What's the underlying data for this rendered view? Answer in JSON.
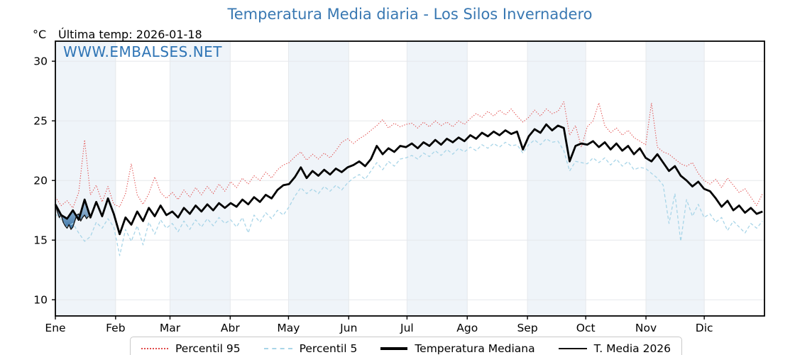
{
  "header": {
    "title": "Temperatura Media diaria - Los Silos Invernadero",
    "unit": "°C",
    "last_temp_annotation": "Última temp: 2026-01-18",
    "watermark": "WWW.EMBALSES.NET"
  },
  "colors": {
    "title_blue": "#3978b2",
    "watermark_blue": "#2e74b5",
    "percentil95_red": "#e14b4b",
    "percentil5_blue": "#a8d5e8",
    "median_black": "#000000",
    "t2026_black": "#111111",
    "month_band": "#eff4f9",
    "gridline": "#e5e8ec",
    "fill_top": "#9fbad4",
    "fill_bottom": "#2e6da4"
  },
  "chart_data": {
    "type": "line",
    "title": "Temperatura Media diaria - Los Silos Invernadero",
    "xlabel": "",
    "ylabel": "°C",
    "ylim": [
      8.6,
      31.7
    ],
    "y_ticks": [
      10,
      15,
      20,
      25,
      30
    ],
    "x_tick_labels": [
      "Ene",
      "Feb",
      "Mar",
      "Abr",
      "May",
      "Jun",
      "Jul",
      "Ago",
      "Sep",
      "Oct",
      "Nov",
      "Dic"
    ],
    "month_boundaries_days": [
      0,
      31,
      59,
      90,
      120,
      151,
      181,
      212,
      243,
      273,
      304,
      334,
      365
    ],
    "shaded_months": "alternating starting with Ene",
    "grid": true,
    "legend_position": "bottom",
    "x_days": [
      1,
      4,
      7,
      10,
      13,
      16,
      19,
      22,
      25,
      28,
      31,
      34,
      37,
      40,
      43,
      46,
      49,
      52,
      55,
      58,
      61,
      64,
      67,
      70,
      73,
      76,
      79,
      82,
      85,
      88,
      91,
      94,
      97,
      100,
      103,
      106,
      109,
      112,
      115,
      118,
      121,
      124,
      127,
      130,
      133,
      136,
      139,
      142,
      145,
      148,
      151,
      154,
      157,
      160,
      163,
      166,
      169,
      172,
      175,
      178,
      181,
      184,
      187,
      190,
      193,
      196,
      199,
      202,
      205,
      208,
      211,
      214,
      217,
      220,
      223,
      226,
      229,
      232,
      235,
      238,
      241,
      244,
      247,
      250,
      253,
      256,
      259,
      262,
      265,
      268,
      271,
      274,
      277,
      280,
      283,
      286,
      289,
      292,
      295,
      298,
      301,
      304,
      307,
      310,
      313,
      316,
      319,
      322,
      325,
      328,
      331,
      334,
      337,
      340,
      343,
      346,
      349,
      352,
      355,
      358,
      361,
      364
    ],
    "series": [
      {
        "name": "Percentil 95",
        "style": "dotted",
        "width": 1.1,
        "values": [
          18.6,
          17.9,
          18.3,
          17.7,
          19.0,
          23.4,
          18.8,
          19.6,
          18.2,
          19.5,
          18.0,
          17.8,
          18.9,
          21.4,
          18.8,
          18.0,
          18.9,
          20.3,
          19.0,
          18.5,
          19.0,
          18.4,
          19.2,
          18.6,
          19.4,
          18.8,
          19.5,
          18.9,
          19.7,
          19.1,
          19.9,
          19.4,
          20.2,
          19.7,
          20.4,
          20.0,
          20.7,
          20.2,
          20.9,
          21.3,
          21.5,
          22.0,
          22.4,
          21.7,
          22.2,
          21.8,
          22.3,
          21.9,
          22.5,
          23.2,
          23.5,
          23.1,
          23.5,
          23.8,
          24.2,
          24.6,
          25.1,
          24.4,
          24.8,
          24.5,
          24.7,
          24.8,
          24.4,
          24.9,
          24.5,
          25.0,
          24.6,
          24.9,
          24.5,
          25.0,
          24.7,
          25.2,
          25.6,
          25.3,
          25.8,
          25.4,
          25.9,
          25.5,
          26.0,
          25.4,
          24.9,
          25.3,
          25.9,
          25.4,
          26.0,
          25.6,
          25.8,
          26.6,
          23.8,
          24.6,
          22.8,
          24.5,
          25.0,
          26.5,
          24.6,
          24.0,
          24.4,
          23.8,
          24.2,
          23.6,
          23.3,
          23.0,
          26.5,
          22.8,
          22.4,
          22.2,
          21.8,
          21.4,
          21.2,
          21.5,
          20.6,
          20.0,
          19.7,
          20.1,
          19.4,
          20.2,
          19.6,
          19.0,
          19.3,
          18.6,
          17.9,
          18.9
        ]
      },
      {
        "name": "Percentil 5",
        "style": "dashed",
        "width": 1.3,
        "values": [
          17.2,
          16.7,
          16.1,
          16.4,
          15.6,
          14.9,
          15.3,
          16.5,
          16.0,
          16.8,
          16.1,
          13.7,
          15.9,
          14.9,
          16.2,
          14.6,
          16.5,
          15.5,
          16.7,
          16.0,
          16.4,
          15.7,
          16.6,
          15.9,
          16.7,
          16.1,
          16.8,
          16.2,
          16.9,
          16.4,
          16.7,
          16.1,
          16.9,
          15.6,
          17.1,
          16.5,
          17.3,
          16.8,
          17.5,
          17.1,
          17.8,
          18.7,
          19.4,
          18.9,
          19.3,
          18.9,
          19.5,
          19.1,
          19.6,
          19.2,
          19.8,
          20.2,
          20.5,
          20.1,
          20.8,
          21.5,
          20.9,
          21.6,
          21.2,
          21.8,
          21.9,
          22.1,
          21.8,
          22.3,
          22.0,
          22.5,
          22.1,
          22.6,
          22.2,
          22.7,
          22.4,
          22.8,
          22.5,
          23.0,
          22.7,
          23.1,
          22.8,
          23.2,
          22.9,
          23.0,
          22.3,
          23.0,
          23.4,
          23.0,
          23.5,
          23.2,
          23.3,
          22.5,
          20.8,
          21.6,
          21.5,
          21.4,
          21.9,
          21.5,
          21.9,
          21.3,
          21.8,
          21.2,
          21.6,
          20.9,
          21.1,
          21.0,
          20.6,
          20.2,
          19.6,
          16.4,
          18.9,
          14.9,
          18.4,
          17.0,
          18.0,
          16.9,
          17.2,
          16.5,
          16.9,
          15.8,
          16.6,
          16.1,
          15.6,
          16.4,
          16.0,
          16.6
        ]
      },
      {
        "name": "Temperatura Mediana",
        "style": "solid",
        "width": 2.8,
        "values": [
          18.0,
          17.1,
          16.8,
          17.5,
          16.7,
          18.4,
          16.9,
          18.2,
          17.0,
          18.5,
          17.2,
          15.5,
          16.9,
          16.3,
          17.4,
          16.6,
          17.7,
          17.0,
          17.9,
          17.1,
          17.4,
          16.9,
          17.7,
          17.2,
          17.9,
          17.4,
          18.0,
          17.5,
          18.1,
          17.7,
          18.1,
          17.8,
          18.4,
          18.0,
          18.6,
          18.2,
          18.8,
          18.5,
          19.2,
          19.6,
          19.7,
          20.3,
          21.1,
          20.2,
          20.8,
          20.4,
          20.9,
          20.5,
          21.0,
          20.7,
          21.1,
          21.3,
          21.6,
          21.2,
          21.8,
          22.9,
          22.2,
          22.7,
          22.4,
          22.9,
          22.8,
          23.1,
          22.7,
          23.2,
          22.9,
          23.4,
          23.0,
          23.5,
          23.2,
          23.6,
          23.3,
          23.8,
          23.5,
          24.0,
          23.7,
          24.1,
          23.8,
          24.2,
          23.9,
          24.1,
          22.6,
          23.7,
          24.3,
          24.0,
          24.7,
          24.2,
          24.6,
          24.4,
          21.6,
          22.9,
          23.1,
          23.0,
          23.3,
          22.8,
          23.2,
          22.6,
          23.1,
          22.5,
          22.9,
          22.2,
          22.7,
          21.9,
          21.6,
          22.2,
          21.5,
          20.8,
          21.2,
          20.4,
          20.0,
          19.5,
          19.9,
          19.3,
          19.1,
          18.5,
          17.8,
          18.3,
          17.5,
          17.9,
          17.3,
          17.7,
          17.2,
          17.4
        ]
      },
      {
        "name": "T. Media 2026",
        "style": "solid",
        "width": 1.3,
        "x": [
          1,
          2,
          3,
          4,
          5,
          6,
          7,
          8,
          9,
          10,
          11,
          12,
          13,
          14,
          15,
          16,
          17,
          18
        ],
        "values": [
          18.0,
          17.4,
          16.9,
          17.1,
          16.5,
          16.2,
          16.0,
          16.3,
          15.9,
          16.1,
          16.6,
          17.1,
          17.2,
          16.6,
          16.9,
          17.1,
          16.8,
          17.0
        ],
        "fill_between": "Temperatura Mediana"
      }
    ]
  },
  "legend": {
    "items": [
      {
        "label": "Percentil 95"
      },
      {
        "label": "Percentil 5"
      },
      {
        "label": "Temperatura Mediana"
      },
      {
        "label": "T. Media 2026"
      }
    ]
  }
}
